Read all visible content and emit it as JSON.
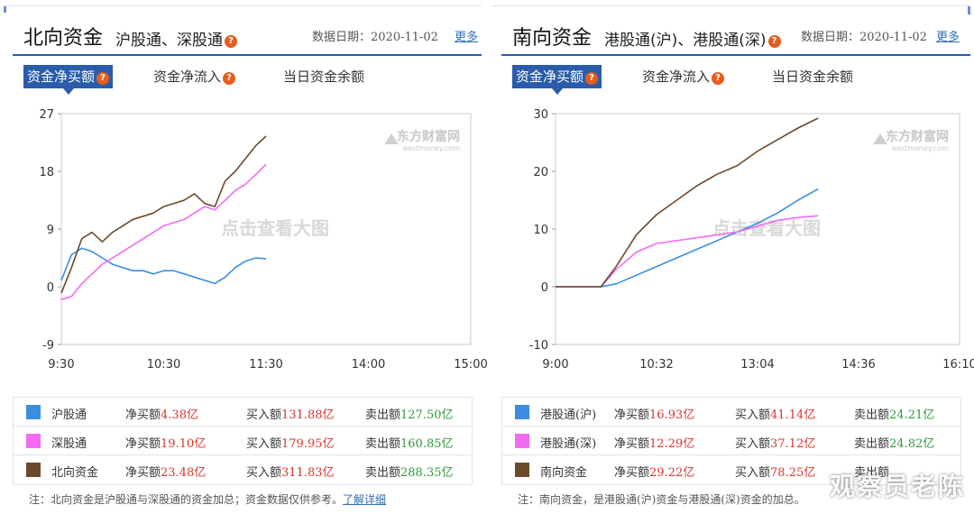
{
  "left": {
    "title": "北向资金",
    "subtitle": "沪股通、深股通",
    "date_label": "数据日期：2020-11-02",
    "more": "更多",
    "tabs": [
      {
        "label": "资金净买额",
        "active": true,
        "help": true
      },
      {
        "label": "资金净流入",
        "active": false,
        "help": true
      },
      {
        "label": "当日资金余额",
        "active": false,
        "help": false
      }
    ],
    "legend": [
      {
        "name": "沪股通",
        "color": "#3b8de0",
        "net_label": "净买额",
        "net": "4.38亿",
        "buy_label": "买入额",
        "buy": "131.88亿",
        "sell_label": "卖出额",
        "sell": "127.50亿"
      },
      {
        "name": "深股通",
        "color": "#f26bf2",
        "net_label": "净买额",
        "net": "19.10亿",
        "buy_label": "买入额",
        "buy": "179.95亿",
        "sell_label": "卖出额",
        "sell": "160.85亿"
      },
      {
        "name": "北向资金",
        "color": "#6b4a2b",
        "net_label": "净买额",
        "net": "23.48亿",
        "buy_label": "买入额",
        "buy": "311.83亿",
        "sell_label": "卖出额",
        "sell": "288.35亿"
      }
    ],
    "note": "注：北向资金是沪股通与深股通的资金加总；资金数据仅供参考。",
    "note_link": "了解详细"
  },
  "right": {
    "title": "南向资金",
    "subtitle": "港股通(沪)、港股通(深)",
    "date_label": "数据日期：2020-11-02",
    "more": "更多",
    "tabs": [
      {
        "label": "资金净买额",
        "active": true,
        "help": true
      },
      {
        "label": "资金净流入",
        "active": false,
        "help": true
      },
      {
        "label": "当日资金余额",
        "active": false,
        "help": false
      }
    ],
    "legend": [
      {
        "name": "港股通(沪)",
        "color": "#3b8de0",
        "net_label": "净买额",
        "net": "16.93亿",
        "buy_label": "买入额",
        "buy": "41.14亿",
        "sell_label": "卖出额",
        "sell": "24.21亿"
      },
      {
        "name": "港股通(深)",
        "color": "#f26bf2",
        "net_label": "净买额",
        "net": "12.29亿",
        "buy_label": "买入额",
        "buy": "37.12亿",
        "sell_label": "卖出额",
        "sell": "24.82亿"
      },
      {
        "name": "南向资金",
        "color": "#6b4a2b",
        "net_label": "净买额",
        "net": "29.22亿",
        "buy_label": "买入额",
        "buy": "78.25亿",
        "sell_label": "卖出额",
        "sell": ""
      }
    ],
    "note": "注：南向资金，是港股通(沪)资金与港股通(深)资金的加总。"
  },
  "watermark": "观察员老陈",
  "chart_data": [
    {
      "type": "line",
      "x_ticks": [
        "9:30",
        "10:30",
        "11:30",
        "14:00",
        "15:00"
      ],
      "y_ticks": [
        27,
        18,
        9,
        0,
        -9
      ],
      "ylim": [
        -9,
        27
      ],
      "watermark_logo": "东方财富网",
      "watermark_logo_sub": "eastmoney.com",
      "overlay_text": "点击查看大图",
      "series": [
        {
          "name": "沪股通",
          "color": "#3b8de0",
          "x": [
            0,
            0.1,
            0.2,
            0.3,
            0.4,
            0.5,
            0.6,
            0.7,
            0.8,
            0.9,
            1.0,
            1.1,
            1.2,
            1.3,
            1.4,
            1.5,
            1.6,
            1.7,
            1.8,
            1.9,
            2.0
          ],
          "y": [
            1.0,
            5.0,
            6.0,
            5.5,
            4.5,
            3.5,
            3.0,
            2.5,
            2.5,
            2.0,
            2.5,
            2.5,
            2.0,
            1.5,
            1.0,
            0.5,
            1.5,
            3.0,
            4.0,
            4.5,
            4.38
          ]
        },
        {
          "name": "深股通",
          "color": "#f26bf2",
          "x": [
            0,
            0.1,
            0.2,
            0.3,
            0.4,
            0.5,
            0.6,
            0.7,
            0.8,
            0.9,
            1.0,
            1.1,
            1.2,
            1.3,
            1.4,
            1.5,
            1.6,
            1.7,
            1.8,
            1.9,
            2.0
          ],
          "y": [
            -2.0,
            -1.5,
            0.5,
            2.0,
            3.5,
            4.5,
            5.5,
            6.5,
            7.5,
            8.5,
            9.5,
            10.0,
            10.5,
            11.5,
            12.5,
            12.0,
            13.5,
            15.0,
            16.0,
            17.5,
            19.1
          ]
        },
        {
          "name": "北向资金",
          "color": "#6b4a2b",
          "x": [
            0,
            0.1,
            0.2,
            0.3,
            0.4,
            0.5,
            0.6,
            0.7,
            0.8,
            0.9,
            1.0,
            1.1,
            1.2,
            1.3,
            1.4,
            1.5,
            1.6,
            1.7,
            1.8,
            1.9,
            2.0
          ],
          "y": [
            -1.0,
            3.0,
            7.5,
            8.5,
            7.0,
            8.5,
            9.5,
            10.5,
            11.0,
            11.5,
            12.5,
            13.0,
            13.5,
            14.5,
            13.0,
            12.5,
            16.5,
            18.0,
            20.0,
            22.0,
            23.48
          ]
        }
      ]
    },
    {
      "type": "line",
      "x_ticks": [
        "9:00",
        "10:32",
        "13:04",
        "14:36",
        "16:10"
      ],
      "y_ticks": [
        30,
        20,
        10,
        0,
        -10
      ],
      "ylim": [
        -10,
        30
      ],
      "watermark_logo": "东方财富网",
      "watermark_logo_sub": "eastmoney.com",
      "overlay_text": "点击查看大图",
      "series": [
        {
          "name": "港股通(沪)",
          "color": "#3b8de0",
          "x": [
            0,
            0.3,
            0.45,
            0.6,
            0.8,
            1.0,
            1.2,
            1.4,
            1.6,
            1.8,
            2.0,
            2.2,
            2.4,
            2.6
          ],
          "y": [
            0,
            0,
            0,
            0.5,
            2.0,
            3.5,
            5.0,
            6.5,
            8.0,
            9.5,
            11.0,
            12.8,
            15.0,
            16.93
          ]
        },
        {
          "name": "港股通(深)",
          "color": "#f26bf2",
          "x": [
            0,
            0.3,
            0.45,
            0.6,
            0.8,
            1.0,
            1.2,
            1.4,
            1.6,
            1.8,
            2.0,
            2.2,
            2.4,
            2.6
          ],
          "y": [
            0,
            0,
            0,
            3.0,
            6.0,
            7.5,
            8.0,
            8.5,
            9.0,
            9.5,
            10.5,
            11.5,
            12.0,
            12.29
          ]
        },
        {
          "name": "南向资金",
          "color": "#6b4a2b",
          "x": [
            0,
            0.3,
            0.45,
            0.6,
            0.8,
            1.0,
            1.2,
            1.4,
            1.6,
            1.8,
            2.0,
            2.2,
            2.4,
            2.6
          ],
          "y": [
            0,
            0,
            0,
            3.5,
            9.0,
            12.5,
            15.0,
            17.5,
            19.5,
            21.0,
            23.5,
            25.5,
            27.5,
            29.22
          ]
        }
      ]
    }
  ]
}
